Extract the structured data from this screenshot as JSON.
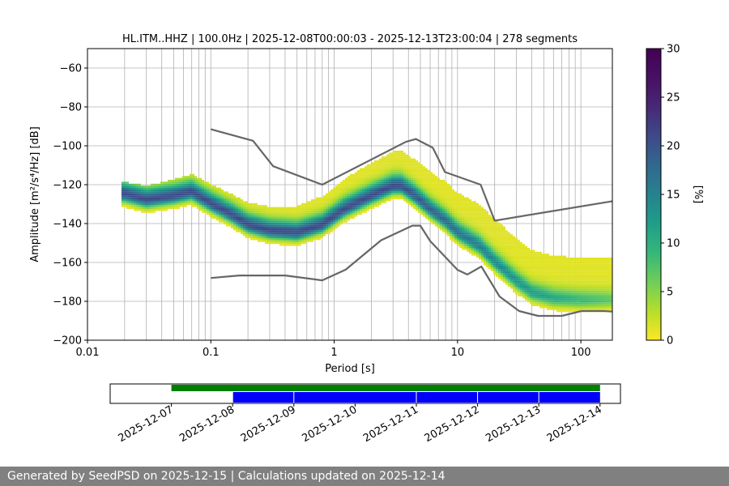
{
  "title": "HL.ITM..HHZ | 100.0Hz | 2025-12-08T00:00:03 - 2025-12-13T23:00:04 | 278 segments",
  "footer": "Generated by SeedPSD on 2025-12-15 | Calculations updated on 2025-12-14",
  "colors": {
    "noise_model": "#666666",
    "coverage_total": "#008000",
    "coverage_data": "#0000ff",
    "grid": "#b0b0b0"
  },
  "chart_data": [
    {
      "type": "heatmap",
      "title": "HL.ITM..HHZ | 100.0Hz | 2025-12-08T00:00:03 - 2025-12-13T23:00:04 | 278 segments",
      "xlabel": "Period [s]",
      "ylabel": "Amplitude [m²/s⁴/Hz] [dB]",
      "xscale": "log",
      "xlim": [
        0.01,
        180
      ],
      "ylim": [
        -200,
        -50
      ],
      "xticks": [
        0.01,
        0.1,
        1,
        10,
        100
      ],
      "xticklabels": [
        "0.01",
        "0.1",
        "1",
        "10",
        "100"
      ],
      "yticks": [
        -60,
        -80,
        -100,
        -120,
        -140,
        -160,
        -180,
        -200
      ],
      "yticklabels": [
        "−60",
        "−80",
        "−100",
        "−120",
        "−140",
        "−160",
        "−180",
        "−200"
      ],
      "grid": true,
      "colorbar": {
        "label": "[%]",
        "range": [
          0,
          30
        ],
        "ticks": [
          0,
          5,
          10,
          15,
          20,
          25,
          30
        ],
        "colormap": "viridis_r"
      },
      "series": [
        {
          "name": "",
          "role": "mode",
          "x": [
            0.02,
            0.03,
            0.05,
            0.07,
            0.1,
            0.15,
            0.2,
            0.3,
            0.5,
            0.8,
            1.2,
            2,
            3,
            3.5,
            4.5,
            6,
            8,
            10,
            15,
            20,
            30,
            40,
            60,
            100,
            180
          ],
          "y": [
            -125,
            -128,
            -126,
            -124,
            -130,
            -136,
            -141,
            -144,
            -145,
            -141,
            -133,
            -126,
            -121,
            -121,
            -126,
            -133,
            -139,
            -145,
            -152,
            -160,
            -170,
            -176,
            -179,
            -180,
            -180
          ]
        },
        {
          "name": "",
          "role": "high-noise-model",
          "x": [
            0.1,
            0.22,
            0.32,
            0.8,
            3.8,
            4.6,
            6.3,
            7.9,
            15.4,
            20,
            180
          ],
          "y": [
            -91.5,
            -97.4,
            -110.5,
            -120,
            -98,
            -96.5,
            -101,
            -113.5,
            -120,
            -138.5,
            -128.5
          ]
        },
        {
          "name": "",
          "role": "low-noise-model",
          "x": [
            0.1,
            0.17,
            0.4,
            0.8,
            1.24,
            2.4,
            4.3,
            5,
            6,
            10,
            12,
            15.6,
            21.9,
            31.6,
            45,
            70,
            101,
            154,
            180
          ],
          "y": [
            -168,
            -166.7,
            -166.7,
            -169.2,
            -163.7,
            -148.6,
            -141.1,
            -141.1,
            -149,
            -163.8,
            -166.2,
            -162.1,
            -177.5,
            -185,
            -187.5,
            -187.5,
            -185,
            -185,
            -185.3
          ]
        }
      ]
    },
    {
      "type": "bar",
      "title": "",
      "xlabel": "",
      "ylabel": "",
      "xlim": [
        "2025-12-06",
        "2025-12-14T08:00"
      ],
      "xticklabels": [
        "2025-12-07",
        "2025-12-08",
        "2025-12-09",
        "2025-12-10",
        "2025-12-11",
        "2025-12-12",
        "2025-12-13",
        "2025-12-14"
      ],
      "series": [
        {
          "name": "",
          "role": "available-window",
          "start": "2025-12-07",
          "end": "2025-12-14"
        },
        {
          "name": "",
          "role": "data-segments",
          "segments": [
            [
              "2025-12-08",
              "2025-12-09"
            ],
            [
              "2025-12-09",
              "2025-12-11"
            ],
            [
              "2025-12-11",
              "2025-12-12"
            ],
            [
              "2025-12-12",
              "2025-12-13"
            ],
            [
              "2025-12-13",
              "2025-12-14"
            ]
          ]
        }
      ]
    }
  ]
}
